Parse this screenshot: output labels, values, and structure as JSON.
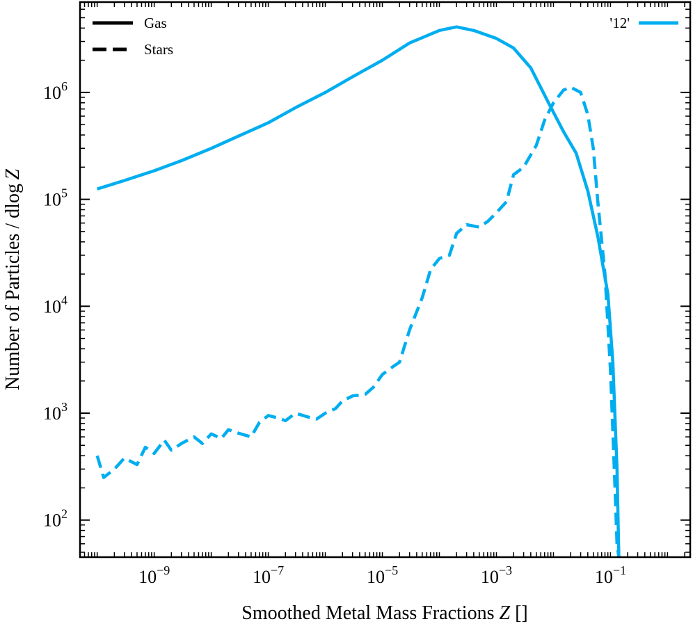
{
  "chart_data": {
    "type": "line",
    "title": "",
    "xlabel_prefix": "Smoothed Metal Mass Fractions ",
    "xlabel_var": "Z",
    "xlabel_suffix": " []",
    "ylabel_prefix": "Number of Particles / dlog ",
    "ylabel_var": "Z",
    "x_scale": "log",
    "y_scale": "log",
    "xlim": [
      5e-11,
      2.5
    ],
    "ylim": [
      45,
      7000000
    ],
    "x_ticks": [
      {
        "base": "10",
        "exp": "−9",
        "value": 1e-09
      },
      {
        "base": "10",
        "exp": "−7",
        "value": 1e-07
      },
      {
        "base": "10",
        "exp": "−5",
        "value": 1e-05
      },
      {
        "base": "10",
        "exp": "−3",
        "value": 0.001
      },
      {
        "base": "10",
        "exp": "−1",
        "value": 0.1
      }
    ],
    "y_ticks": [
      {
        "base": "10",
        "exp": "2",
        "value": 100
      },
      {
        "base": "10",
        "exp": "3",
        "value": 1000
      },
      {
        "base": "10",
        "exp": "4",
        "value": 10000
      },
      {
        "base": "10",
        "exp": "5",
        "value": 100000
      },
      {
        "base": "10",
        "exp": "6",
        "value": 1000000
      }
    ],
    "style_legend": {
      "position": "top-left",
      "entries": [
        {
          "label": "Gas",
          "linestyle": "solid"
        },
        {
          "label": "Stars",
          "linestyle": "dashed"
        }
      ]
    },
    "series_legend": {
      "position": "top-right",
      "entries": [
        {
          "label": "'12'",
          "color": "#00aef0"
        }
      ]
    },
    "series": [
      {
        "name": "Gas",
        "linestyle": "solid",
        "color": "#00aef0",
        "x": [
          1e-10,
          3e-10,
          1e-09,
          3e-09,
          1e-08,
          3e-08,
          1e-07,
          3e-07,
          1e-06,
          3e-06,
          1e-05,
          3e-05,
          0.0001,
          0.0002,
          0.0004,
          0.001,
          0.002,
          0.004,
          0.008,
          0.015,
          0.025,
          0.04,
          0.06,
          0.09,
          0.11,
          0.13,
          0.14
        ],
        "y": [
          125000,
          150000,
          185000,
          230000,
          300000,
          390000,
          520000,
          720000,
          1000000,
          1400000,
          2000000,
          2900000,
          3800000,
          4100000,
          3800000,
          3200000,
          2600000,
          1700000,
          820000,
          430000,
          270000,
          120000,
          45000,
          13000,
          3000,
          300,
          45
        ]
      },
      {
        "name": "Stars",
        "linestyle": "dashed",
        "color": "#00aef0",
        "x": [
          1e-10,
          1.3e-10,
          2e-10,
          3e-10,
          5e-10,
          7e-10,
          1e-09,
          1.5e-09,
          2e-09,
          3e-09,
          5e-09,
          7e-09,
          1e-08,
          1.5e-08,
          2e-08,
          3e-08,
          5e-08,
          7e-08,
          1e-07,
          1.5e-07,
          2e-07,
          3e-07,
          5e-07,
          7e-07,
          1e-06,
          1.5e-06,
          2e-06,
          3e-06,
          5e-06,
          7e-06,
          1e-05,
          1.5e-05,
          2e-05,
          3e-05,
          5e-05,
          7e-05,
          0.0001,
          0.00015,
          0.0002,
          0.0003,
          0.0005,
          0.0007,
          0.001,
          0.0015,
          0.002,
          0.003,
          0.005,
          0.007,
          0.01,
          0.015,
          0.02,
          0.03,
          0.04,
          0.05,
          0.06,
          0.08,
          0.1,
          0.12,
          0.13,
          0.14
        ],
        "y": [
          400,
          250,
          300,
          380,
          330,
          480,
          420,
          560,
          450,
          520,
          600,
          520,
          640,
          580,
          700,
          650,
          600,
          820,
          950,
          900,
          850,
          1000,
          920,
          880,
          1000,
          1100,
          1300,
          1450,
          1500,
          1750,
          2300,
          2700,
          3000,
          6000,
          12000,
          22000,
          28000,
          30000,
          48000,
          58000,
          55000,
          62000,
          75000,
          95000,
          170000,
          200000,
          320000,
          550000,
          800000,
          1050000,
          1120000,
          1000000,
          620000,
          300000,
          95000,
          20000,
          2500,
          200,
          60,
          45
        ]
      }
    ]
  }
}
